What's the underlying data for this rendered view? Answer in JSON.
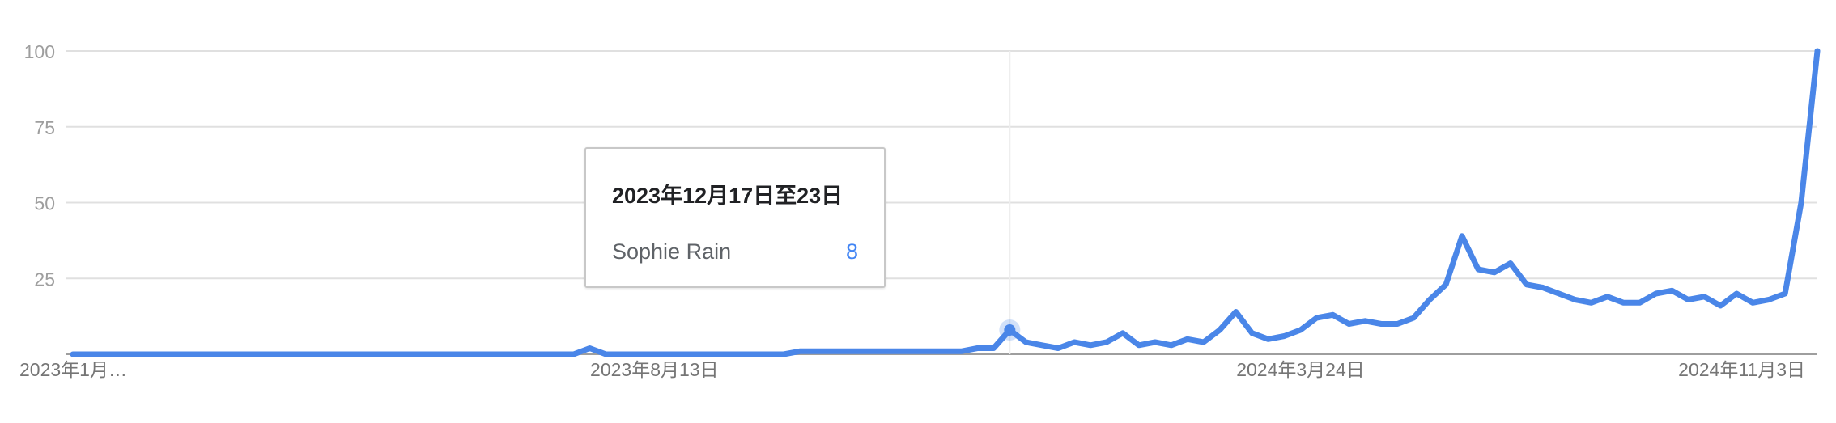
{
  "chart_data": {
    "type": "line",
    "x_tick_labels": [
      "2023年1月…",
      "2023年8月13日",
      "2024年3月24日",
      "2024年11月3日"
    ],
    "y_ticks": [
      25,
      50,
      75,
      100
    ],
    "ylim": [
      0,
      100
    ],
    "grid": true,
    "series": [
      {
        "name": "Sophie Rain",
        "color": "#4a86e8",
        "values": [
          0,
          0,
          0,
          0,
          0,
          0,
          0,
          0,
          0,
          0,
          0,
          0,
          0,
          0,
          0,
          0,
          0,
          0,
          0,
          0,
          0,
          0,
          0,
          0,
          0,
          0,
          0,
          0,
          0,
          0,
          0,
          0,
          2,
          0,
          0,
          0,
          0,
          0,
          0,
          0,
          0,
          0,
          0,
          0,
          0,
          1,
          1,
          1,
          1,
          1,
          1,
          1,
          1,
          1,
          1,
          1,
          2,
          2,
          8,
          4,
          3,
          2,
          4,
          3,
          4,
          7,
          3,
          4,
          3,
          5,
          4,
          8,
          14,
          7,
          5,
          6,
          8,
          12,
          13,
          10,
          11,
          10,
          10,
          12,
          18,
          23,
          39,
          28,
          27,
          30,
          23,
          22,
          20,
          18,
          17,
          19,
          17,
          17,
          20,
          21,
          18,
          19,
          16,
          20,
          17,
          18,
          20,
          50,
          100
        ],
        "partial_from_index": 109
      }
    ],
    "highlight_index": 58
  },
  "tooltip": {
    "date": "2023年12月17日至23日",
    "series_name": "Sophie Rain",
    "value": "8"
  }
}
